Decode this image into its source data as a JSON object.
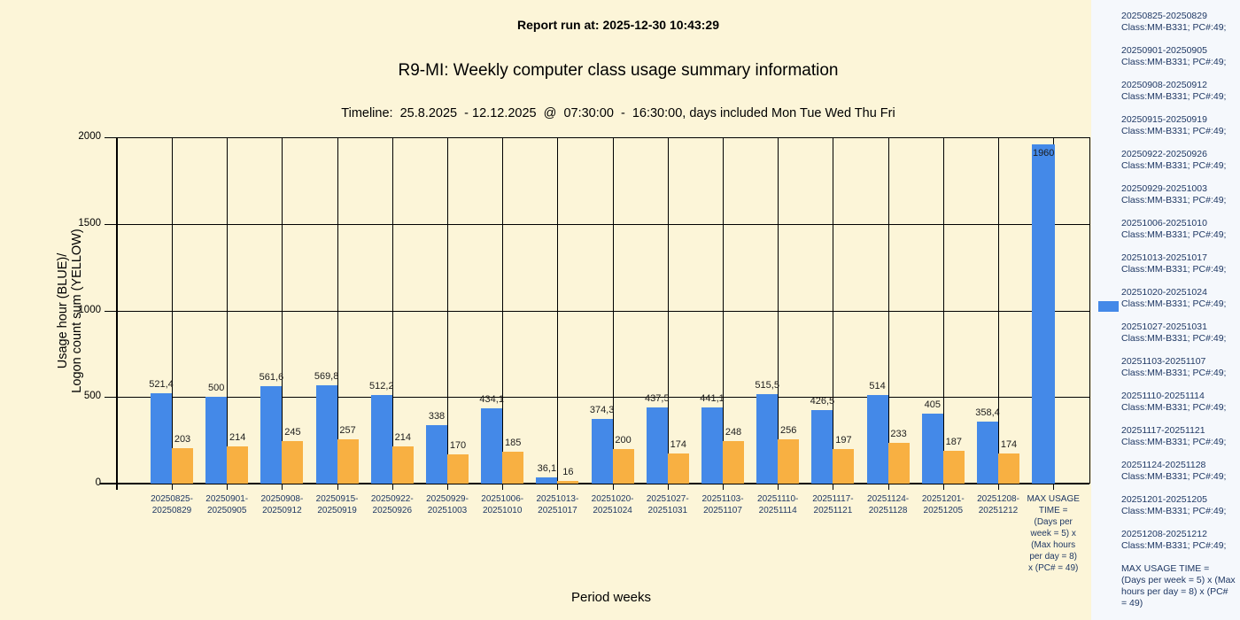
{
  "header": {
    "report_run": "Report run at: 2025-12-30 10:43:29",
    "title": "R9-MI: Weekly computer class usage summary information",
    "timeline": "Timeline:  25.8.2025  - 12.12.2025  @  07:30:00  -  16:30:00, days included Mon Tue Wed Thu Fri"
  },
  "axes": {
    "y_title_line1": "Usage hour (BLUE)/",
    "y_title_line2": "Logon count sum (YELLOW)",
    "x_title": "Period weeks",
    "y_ticks": [
      "0",
      "500",
      "1000",
      "1500",
      "2000"
    ]
  },
  "colors": {
    "background": "#FCF5D8",
    "legend_panel": "#F5F8FC",
    "blue_series": "#4489E8",
    "yellow_series": "#F8B042",
    "grid": "#000000",
    "label_navy": "#1F3864"
  },
  "chart_data": {
    "type": "bar",
    "title": "R9-MI: Weekly computer class usage summary information",
    "xlabel": "Period weeks",
    "ylabel": "Usage hour (BLUE) / Logon count sum (YELLOW)",
    "ylim": [
      0,
      2000
    ],
    "grid": true,
    "legend_position": "right",
    "categories": [
      "20250825-20250829",
      "20250901-20250905",
      "20250908-20250912",
      "20250915-20250919",
      "20250922-20250926",
      "20250929-20251003",
      "20251006-20251010",
      "20251013-20251017",
      "20251020-20251024",
      "20251027-20251031",
      "20251103-20251107",
      "20251110-20251114",
      "20251117-20251121",
      "20251124-20251128",
      "20251201-20251205",
      "20251208-20251212",
      "MAX USAGE TIME = (Days per week = 5) x (Max hours per day = 8) x (PC# = 49)"
    ],
    "max_category_label_lines": "MAX USAGE\nTIME =\n(Days per\nweek = 5) x\n(Max hours\nper day = 8)\nx (PC# = 49)",
    "series": [
      {
        "name": "Usage hour (BLUE)",
        "color": "#4489E8",
        "values": [
          521.4,
          500,
          561.6,
          569.8,
          512.2,
          338,
          434.1,
          36.1,
          374.3,
          437.5,
          441.1,
          515.5,
          426.5,
          514,
          405,
          358.4,
          1960
        ],
        "labels": [
          "521,4",
          "500",
          "561,6",
          "569,8",
          "512,2",
          "338",
          "434,1",
          "36,1",
          "374,3",
          "437,5",
          "441,1",
          "515,5",
          "426,5",
          "514",
          "405",
          "358,4",
          "1960"
        ]
      },
      {
        "name": "Logon count sum (YELLOW)",
        "color": "#F8B042",
        "values": [
          203,
          214,
          245,
          257,
          214,
          170,
          185,
          16,
          200,
          174,
          248,
          256,
          197,
          233,
          187,
          174,
          null
        ],
        "labels": [
          "203",
          "214",
          "245",
          "257",
          "214",
          "170",
          "185",
          "16",
          "200",
          "174",
          "248",
          "256",
          "197",
          "233",
          "187",
          "174",
          null
        ]
      }
    ]
  },
  "legend": {
    "marker_color": "#4489E8",
    "entry_detail": "Class:MM-B331; PC#:49;",
    "entries": [
      {
        "range": "20250825-20250829",
        "detail": "Class:MM-B331; PC#:49;"
      },
      {
        "range": "20250901-20250905",
        "detail": "Class:MM-B331; PC#:49;"
      },
      {
        "range": "20250908-20250912",
        "detail": "Class:MM-B331; PC#:49;"
      },
      {
        "range": "20250915-20250919",
        "detail": "Class:MM-B331; PC#:49;"
      },
      {
        "range": "20250922-20250926",
        "detail": "Class:MM-B331; PC#:49;"
      },
      {
        "range": "20250929-20251003",
        "detail": "Class:MM-B331; PC#:49;"
      },
      {
        "range": "20251006-20251010",
        "detail": "Class:MM-B331; PC#:49;"
      },
      {
        "range": "20251013-20251017",
        "detail": "Class:MM-B331; PC#:49;"
      },
      {
        "range": "20251020-20251024",
        "detail": "Class:MM-B331; PC#:49;"
      },
      {
        "range": "20251027-20251031",
        "detail": "Class:MM-B331; PC#:49;"
      },
      {
        "range": "20251103-20251107",
        "detail": "Class:MM-B331; PC#:49;"
      },
      {
        "range": "20251110-20251114",
        "detail": "Class:MM-B331; PC#:49;"
      },
      {
        "range": "20251117-20251121",
        "detail": "Class:MM-B331; PC#:49;"
      },
      {
        "range": "20251124-20251128",
        "detail": "Class:MM-B331; PC#:49;"
      },
      {
        "range": "20251201-20251205",
        "detail": "Class:MM-B331; PC#:49;"
      },
      {
        "range": "20251208-20251212",
        "detail": "Class:MM-B331; PC#:49;"
      }
    ],
    "max_note": "MAX USAGE TIME =\n (Days per week = 5) x (Max\nhours per day = 8) x (PC#\n= 49)"
  }
}
